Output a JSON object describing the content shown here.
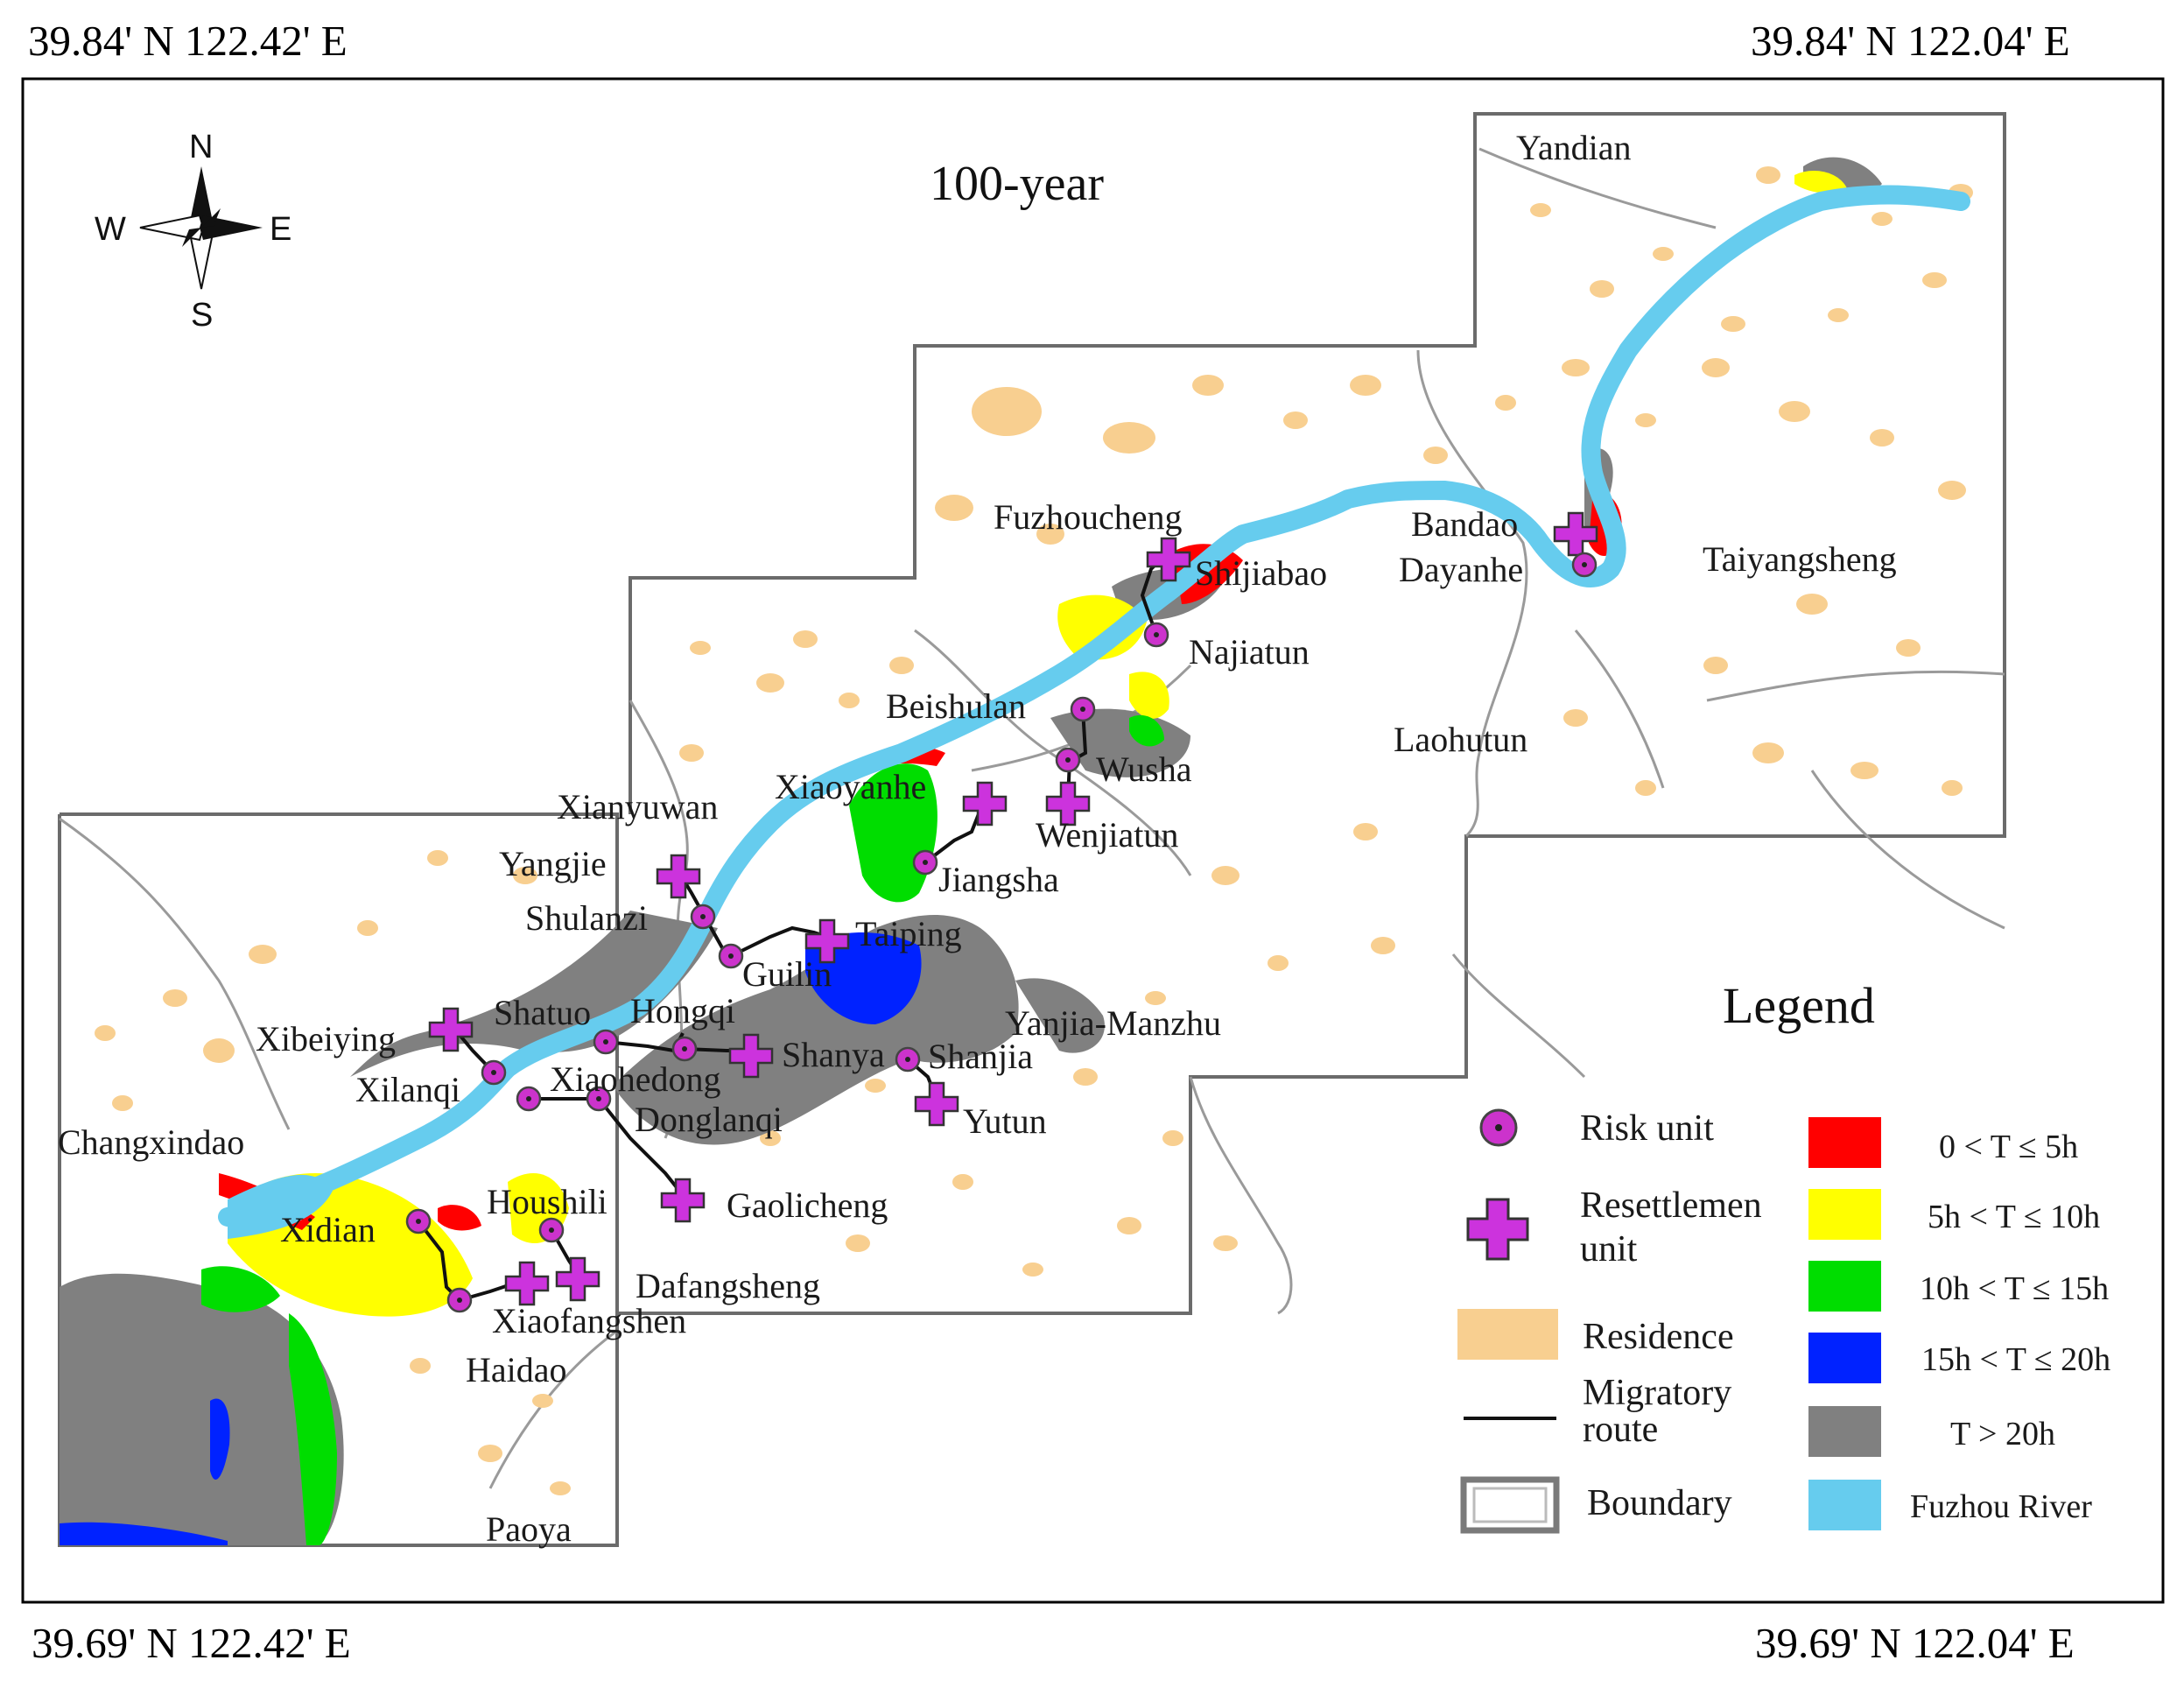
{
  "corners": {
    "top_left": "39.84' N 122.42' E",
    "top_right": "39.84' N 122.04' E",
    "bottom_left": "39.69' N 122.42' E",
    "bottom_right": "39.69' N 122.04' E"
  },
  "map_title": "100-year",
  "compass": {
    "n": "N",
    "s": "S",
    "e": "E",
    "w": "W"
  },
  "place_labels": {
    "yandian": "Yandian",
    "fuzhoucheng": "Fuzhoucheng",
    "shijiabao": "Shijiabao",
    "bandao": "Bandao",
    "dayanhe": "Dayanhe",
    "taiyangsheng": "Taiyangsheng",
    "najiatun": "Najiatun",
    "beishulan": "Beishulan",
    "wusha": "Wusha",
    "laohutun": "Laohutun",
    "xiaoyanhe": "Xiaoyanhe",
    "wenjiatun": "Wenjiatun",
    "xianyuwan": "Xianyuwan",
    "yangjie": "Yangjie",
    "jiangsha": "Jiangsha",
    "shulanzi": "Shulanzi",
    "taiping": "Taiping",
    "guilin": "Guilin",
    "yanjia_manzhu": "Yanjia-Manzhu",
    "shatuo": "Shatuo",
    "hongqi": "Hongqi",
    "xibeiying": "Xibeiying",
    "shanya": "Shanya",
    "shanjia": "Shanjia",
    "xilanqi": "Xilanqi",
    "xiaohedong": "Xiaohedong",
    "yutun": "Yutun",
    "donglanqi": "Donglanqi",
    "changxindao": "Changxindao",
    "houshili": "Houshili",
    "gaolicheng": "Gaolicheng",
    "xidian": "Xidian",
    "dafangsheng": "Dafangsheng",
    "xiaofangshen": "Xiaofangshen",
    "haidao": "Haidao",
    "paoya": "Paoya"
  },
  "legend": {
    "title": "Legend",
    "risk_unit": "Risk unit",
    "resettlement_line1": "Resettlemen",
    "resettlement_line2": "unit",
    "residence": "Residence",
    "route_line1": "Migratory",
    "route_line2": "route",
    "boundary": "Boundary",
    "classes": [
      "0 < T ≤ 5h",
      "5h < T ≤ 10h",
      "10h < T ≤ 15h",
      "15h < T ≤ 20h",
      "T > 20h",
      "Fuzhou River"
    ]
  },
  "colors": {
    "t0_5": "#ff0000",
    "t5_10": "#ffff00",
    "t10_15": "#00dd00",
    "t15_20": "#0022ff",
    "t20": "#808080",
    "river": "#66ccee",
    "residence": "#f8cf90",
    "risk_unit": "#cc33cc",
    "resettlement_unit": "#cc33dd"
  }
}
